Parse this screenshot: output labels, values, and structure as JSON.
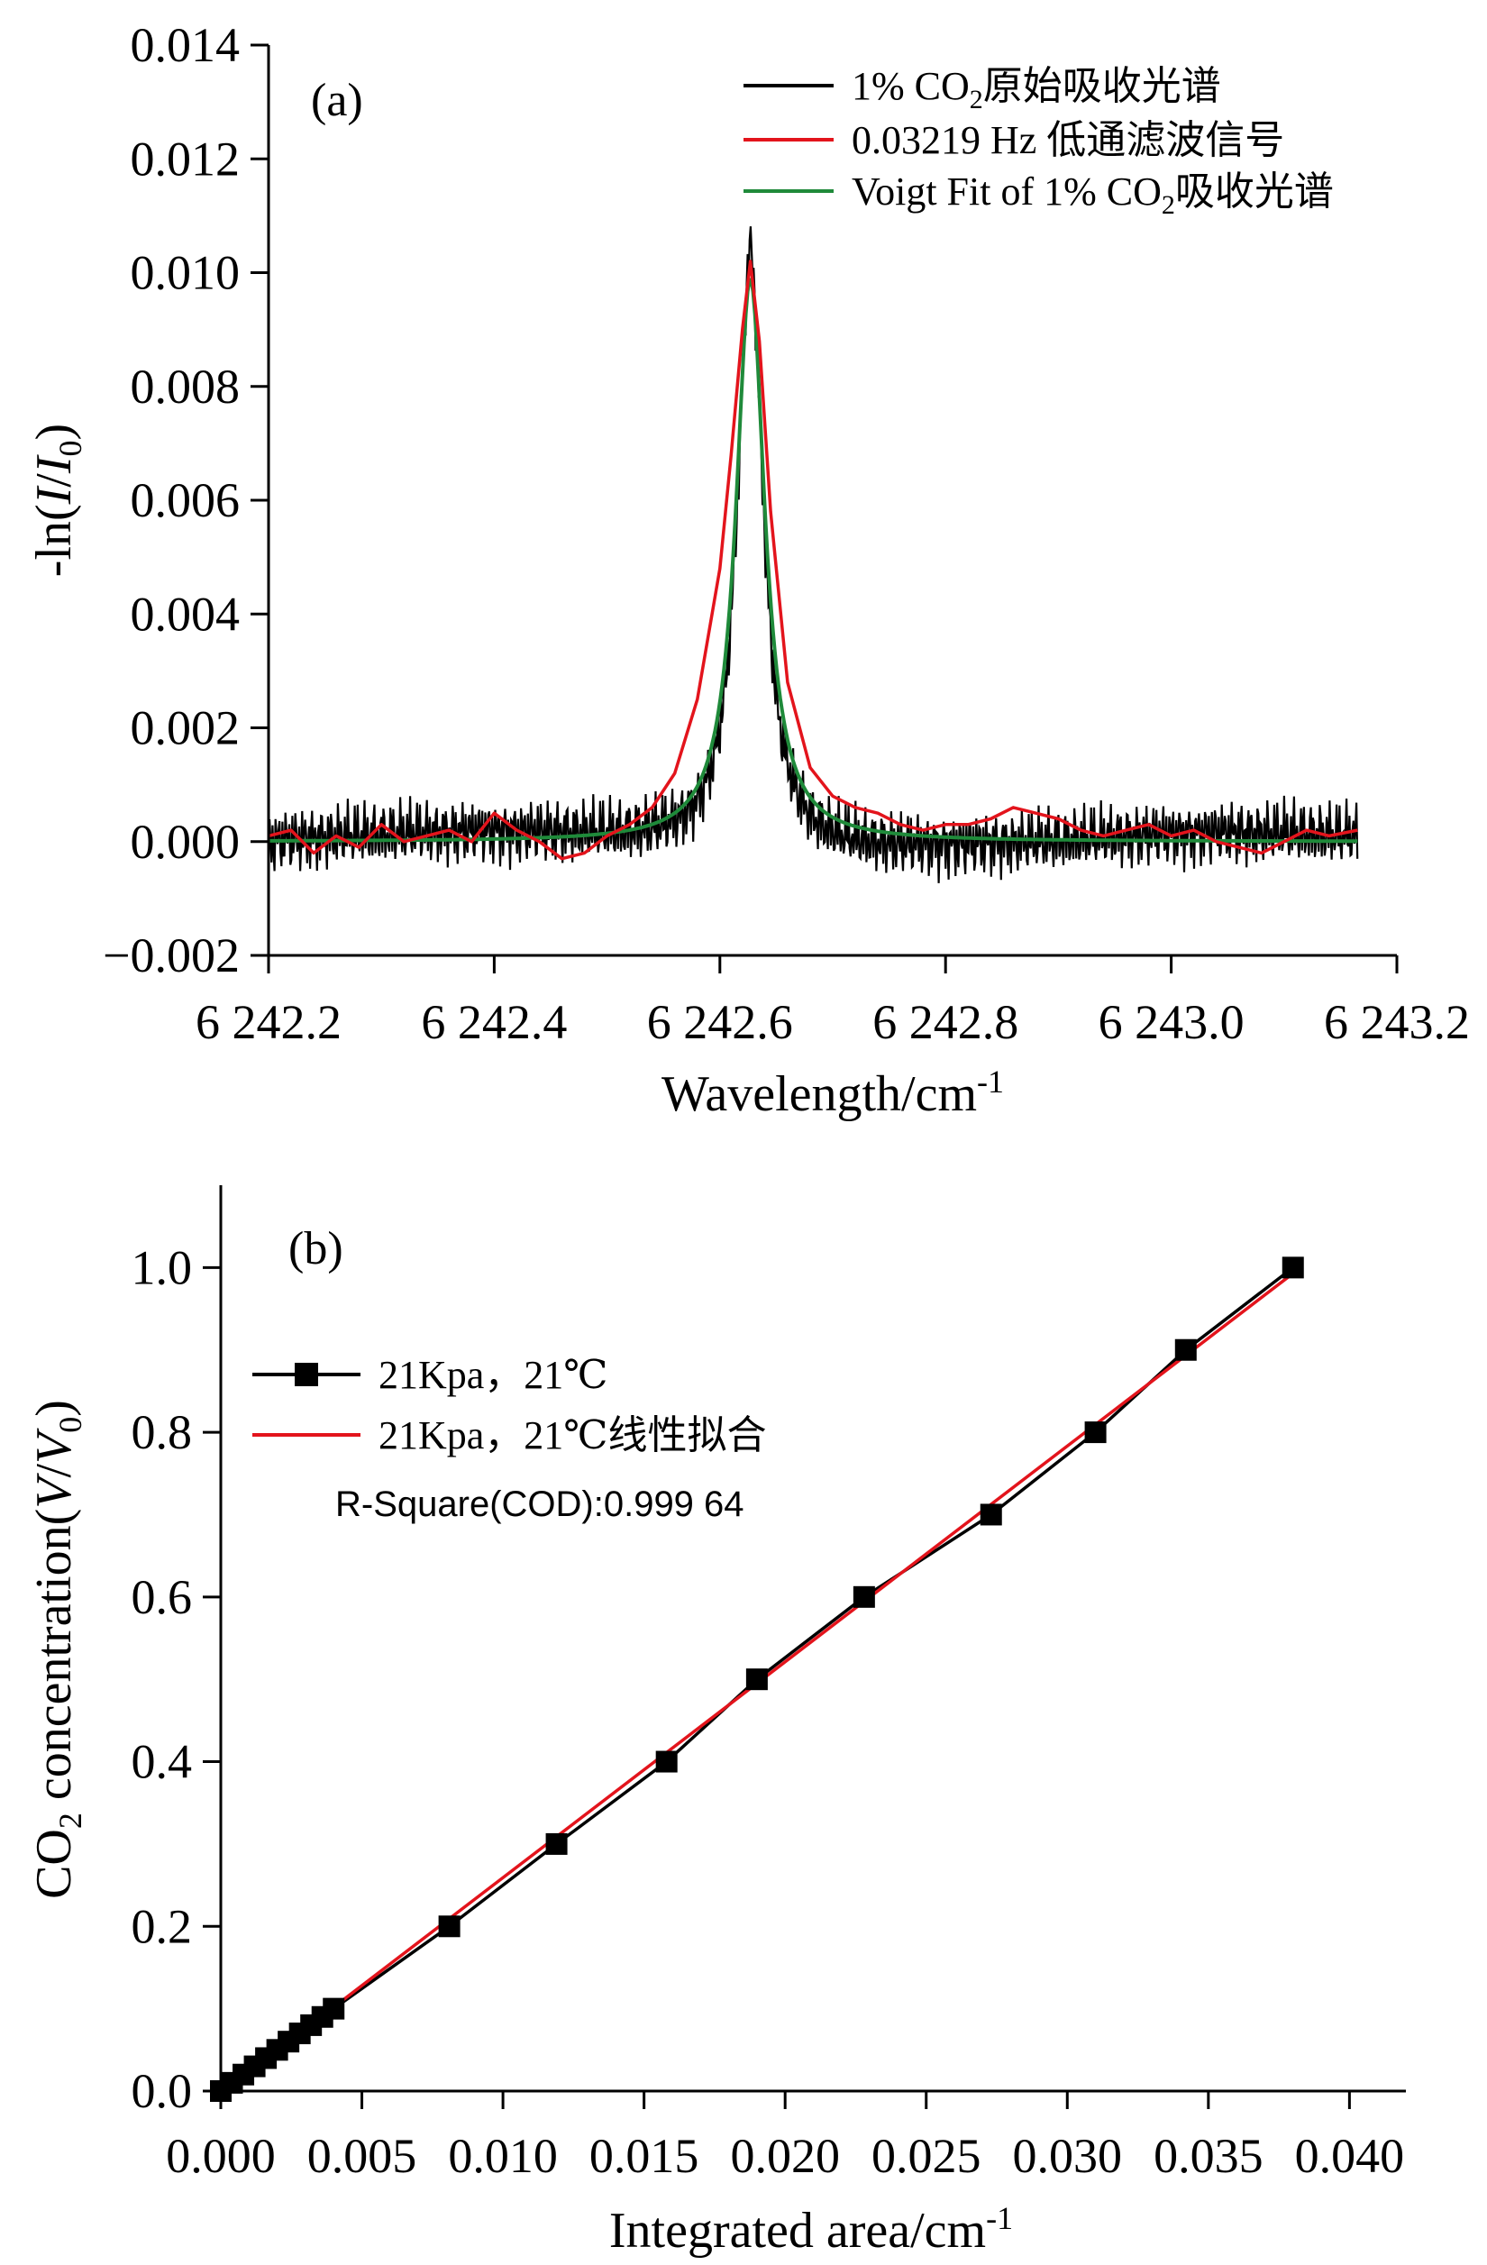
{
  "chart_data": [
    {
      "type": "line",
      "panel_label": "(a)",
      "xlabel": "Wavelength/cm",
      "xlabel_sup": "-1",
      "ylabel_prefix": "-ln(",
      "ylabel_I": "I",
      "ylabel_slash": "/",
      "ylabel_I0": "I",
      "ylabel_sub": "0",
      "ylabel_suffix": ")",
      "xlim": [
        6242.2,
        6243.2
      ],
      "ylim": [
        -0.002,
        0.014
      ],
      "xticks": [
        6242.2,
        6242.4,
        6242.6,
        6242.8,
        6243.0,
        6243.2
      ],
      "xtick_labels": [
        "6 242.2",
        "6 242.4",
        "6 242.6",
        "6 242.8",
        "6 243.0",
        "6 243.2"
      ],
      "yticks": [
        -0.002,
        0.0,
        0.002,
        0.004,
        0.006,
        0.008,
        0.01,
        0.012,
        0.014
      ],
      "ytick_labels": [
        "−0.002",
        "0.000",
        "0.002",
        "0.004",
        "0.006",
        "0.008",
        "0.010",
        "0.012",
        "0.014"
      ],
      "legend_position": "top-right",
      "grid": false,
      "series": [
        {
          "name": "1% CO₂原始吸收光谱",
          "name_parts": [
            "1% CO",
            "2",
            "原始吸收光谱"
          ],
          "color": "#000000",
          "description": "raw noisy absorption spectrum",
          "peak_x": 6242.627,
          "peak_y": 0.0105,
          "baseline": 0.0,
          "noise_amplitude": 0.0006
        },
        {
          "name": "0.03219 Hz 低通滤波信号",
          "name_parts": [
            "0.03219 Hz 低通滤波信号"
          ],
          "color": "#e3141c",
          "x": [
            6242.2,
            6242.22,
            6242.24,
            6242.26,
            6242.28,
            6242.3,
            6242.32,
            6242.34,
            6242.36,
            6242.38,
            6242.4,
            6242.42,
            6242.44,
            6242.46,
            6242.48,
            6242.5,
            6242.52,
            6242.54,
            6242.56,
            6242.58,
            6242.6,
            6242.61,
            6242.62,
            6242.627,
            6242.635,
            6242.645,
            6242.66,
            6242.68,
            6242.7,
            6242.72,
            6242.74,
            6242.76,
            6242.78,
            6242.8,
            6242.82,
            6242.84,
            6242.86,
            6242.88,
            6242.9,
            6242.92,
            6242.94,
            6242.96,
            6242.98,
            6243.0,
            6243.02,
            6243.04,
            6243.06,
            6243.08,
            6243.1,
            6243.12,
            6243.14,
            6243.165
          ],
          "y": [
            0.0001,
            0.0002,
            -0.0002,
            0.0001,
            -0.0001,
            0.0003,
            0.0,
            0.0001,
            0.0002,
            0.0,
            0.0005,
            0.0002,
            0.0,
            -0.0003,
            -0.0002,
            0.0001,
            0.0003,
            0.0006,
            0.0012,
            0.0025,
            0.0048,
            0.0068,
            0.009,
            0.0102,
            0.0088,
            0.0058,
            0.0028,
            0.0013,
            0.0008,
            0.0006,
            0.0005,
            0.0003,
            0.0002,
            0.0003,
            0.0003,
            0.0004,
            0.0006,
            0.0005,
            0.0004,
            0.0002,
            0.0001,
            0.0002,
            0.0003,
            0.0001,
            0.0002,
            0.0,
            -0.0001,
            -0.0002,
            0.0,
            0.0002,
            0.0001,
            0.0002
          ]
        },
        {
          "name": "Voigt Fit of 1% CO₂吸收光谱",
          "name_parts": [
            "Voigt Fit of 1% CO",
            "2",
            "吸收光谱"
          ],
          "color": "#1f8a3a",
          "peak_x": 6242.627,
          "peak_y": 0.0099,
          "baseline": 0.0
        }
      ]
    },
    {
      "type": "scatter",
      "panel_label": "(b)",
      "xlabel": "Integrated area/cm",
      "xlabel_sup": "-1",
      "ylabel_co": "CO",
      "ylabel_sub2": "2",
      "ylabel_mid": " concentration(",
      "ylabel_V": "V",
      "ylabel_slash": "/",
      "ylabel_V0": "V",
      "ylabel_sub0": "0",
      "ylabel_end": ")",
      "xlim": [
        0.0,
        0.042
      ],
      "ylim": [
        0.0,
        1.1
      ],
      "xticks": [
        0.0,
        0.005,
        0.01,
        0.015,
        0.02,
        0.025,
        0.03,
        0.035,
        0.04
      ],
      "xtick_labels": [
        "0.000",
        "0.005",
        "0.010",
        "0.015",
        "0.020",
        "0.025",
        "0.030",
        "0.035",
        "0.040"
      ],
      "yticks": [
        0.0,
        0.2,
        0.4,
        0.6,
        0.8,
        1.0
      ],
      "ytick_labels": [
        "0.0",
        "0.2",
        "0.4",
        "0.6",
        "0.8",
        "1.0"
      ],
      "legend_position": "top-left",
      "grid": false,
      "annotation": "R-Square(COD):0.999 64",
      "series": [
        {
          "name": "21Kpa，21℃",
          "color": "#000000",
          "marker": "square",
          "x": [
            0.0,
            0.0004,
            0.0008,
            0.0012,
            0.0016,
            0.002,
            0.0024,
            0.0028,
            0.0032,
            0.0036,
            0.004,
            0.0081,
            0.0119,
            0.0158,
            0.019,
            0.0228,
            0.0273,
            0.031,
            0.0342,
            0.038
          ],
          "y": [
            0.0,
            0.01,
            0.02,
            0.03,
            0.04,
            0.05,
            0.06,
            0.07,
            0.08,
            0.09,
            0.1,
            0.2,
            0.3,
            0.4,
            0.5,
            0.6,
            0.7,
            0.8,
            0.9,
            1.0
          ]
        },
        {
          "name": "21Kpa，21℃线性拟合",
          "color": "#e3141c",
          "x": [
            0.0,
            0.038
          ],
          "y": [
            -0.003,
            0.993
          ]
        }
      ]
    }
  ]
}
